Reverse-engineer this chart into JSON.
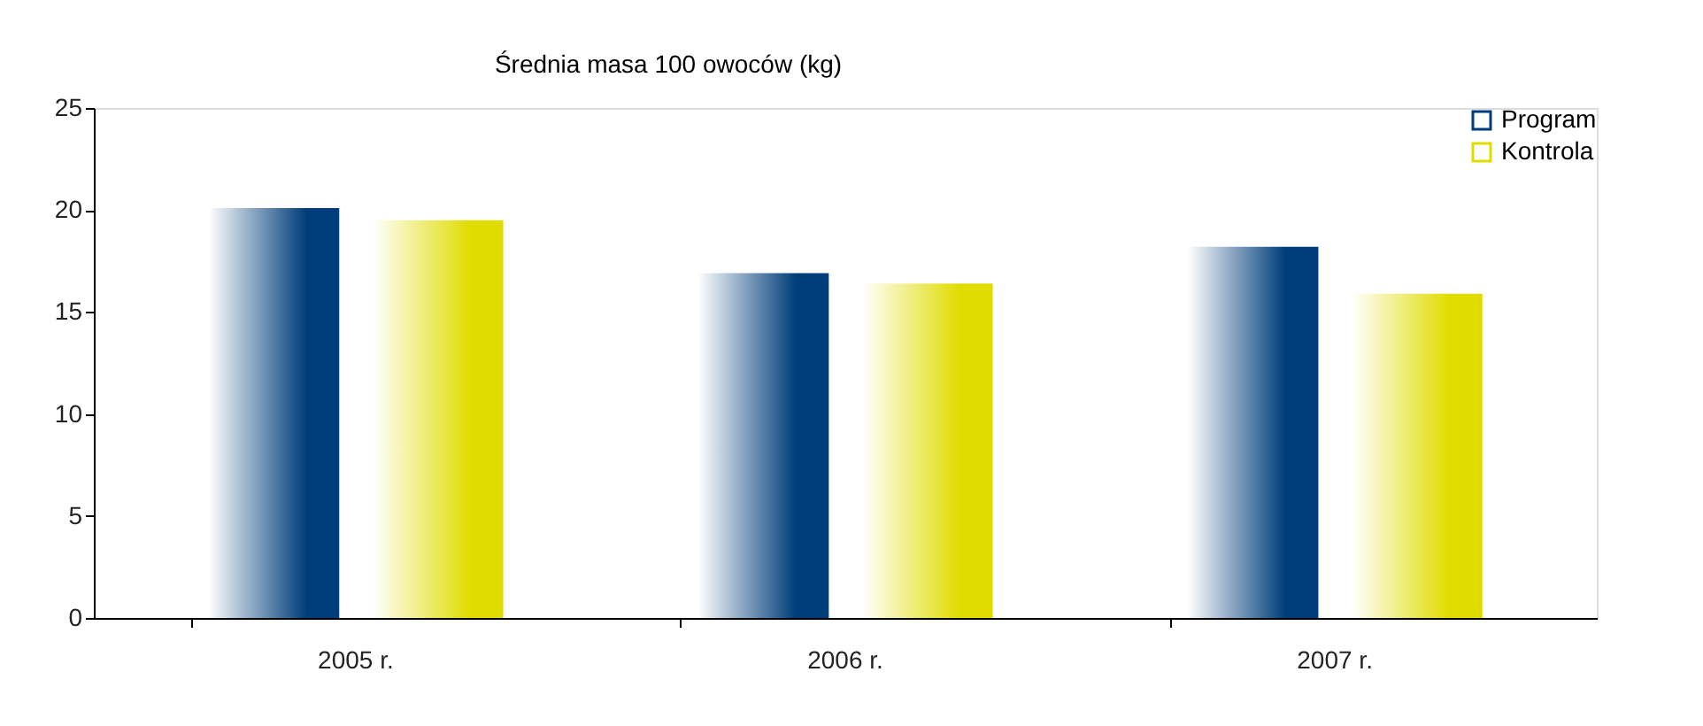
{
  "chart_data": {
    "type": "bar",
    "title": "Średnia masa 100 owoców (kg)",
    "categories": [
      "2005 r.",
      "2006 r.",
      "2007 r."
    ],
    "series": [
      {
        "name": "Program",
        "color": "#003d7a",
        "values": [
          20.1,
          16.9,
          18.2
        ]
      },
      {
        "name": "Kontrola",
        "color": "#e0dc00",
        "values": [
          19.5,
          16.4,
          15.9
        ]
      }
    ],
    "ylim": [
      0,
      25
    ],
    "yticks": [
      0,
      5,
      10,
      15,
      20,
      25
    ],
    "grid": false,
    "legend": "top right"
  }
}
